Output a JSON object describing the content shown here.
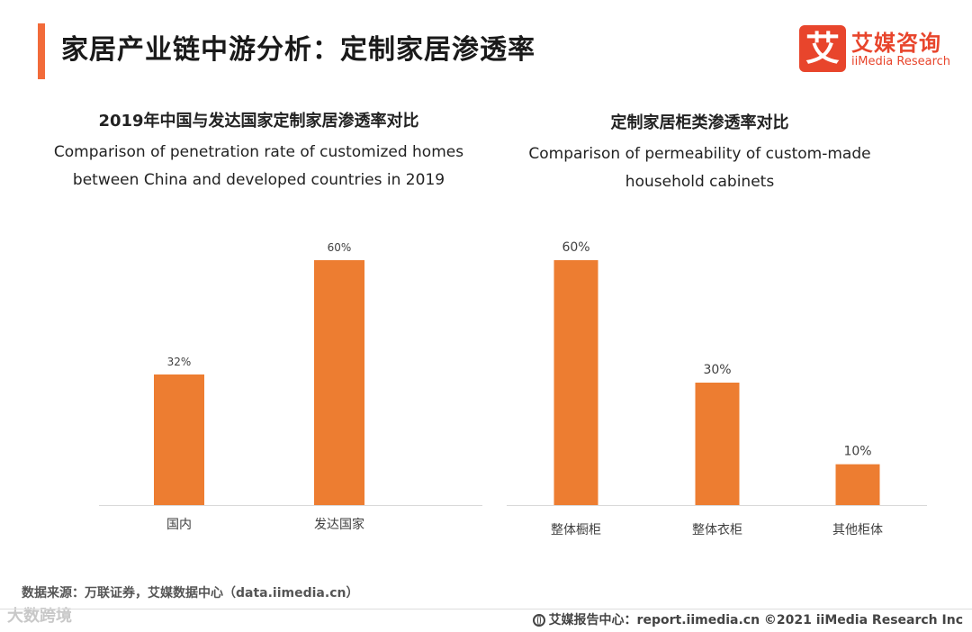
{
  "page": {
    "title": "家居产业链中游分析：定制家居渗透率"
  },
  "logo": {
    "glyph": "艾",
    "cn": "艾媒咨询",
    "en": "iiMedia Research"
  },
  "colors": {
    "accent": "#f26b3a",
    "bar": "#ed7d31",
    "logo": "#e8452c"
  },
  "charts": {
    "left": {
      "title_cn": "2019年中国与发达国家定制家居渗透率对比",
      "title_en_1": "Comparison of penetration rate of customized homes",
      "title_en_2": "between China and developed countries in 2019"
    },
    "right": {
      "title_cn": "定制家居柜类渗透率对比",
      "title_en_1": "Comparison of permeability of custom-made",
      "title_en_2": "household cabinets"
    }
  },
  "chart_data": [
    {
      "type": "bar",
      "title": "2019年中国与发达国家定制家居渗透率对比",
      "categories": [
        "国内",
        "发达国家"
      ],
      "values": [
        32,
        60
      ],
      "data_labels": [
        "32%",
        "60%"
      ],
      "ylim": [
        0,
        60
      ],
      "grid": false,
      "legend": "none"
    },
    {
      "type": "bar",
      "title": "定制家居柜类渗透率对比",
      "categories": [
        "整体橱柜",
        "整体衣柜",
        "其他柜体"
      ],
      "values": [
        60,
        30,
        10
      ],
      "data_labels": [
        "60%",
        "30%",
        "10%"
      ],
      "ylim": [
        0,
        60
      ],
      "grid": false,
      "legend": "none"
    }
  ],
  "source": "数据来源：万联证券，艾媒数据中心（data.iimedia.cn）",
  "watermark": "大数跨境",
  "footer": "艾媒报告中心：report.iimedia.cn  ©2021  iiMedia Research  Inc"
}
